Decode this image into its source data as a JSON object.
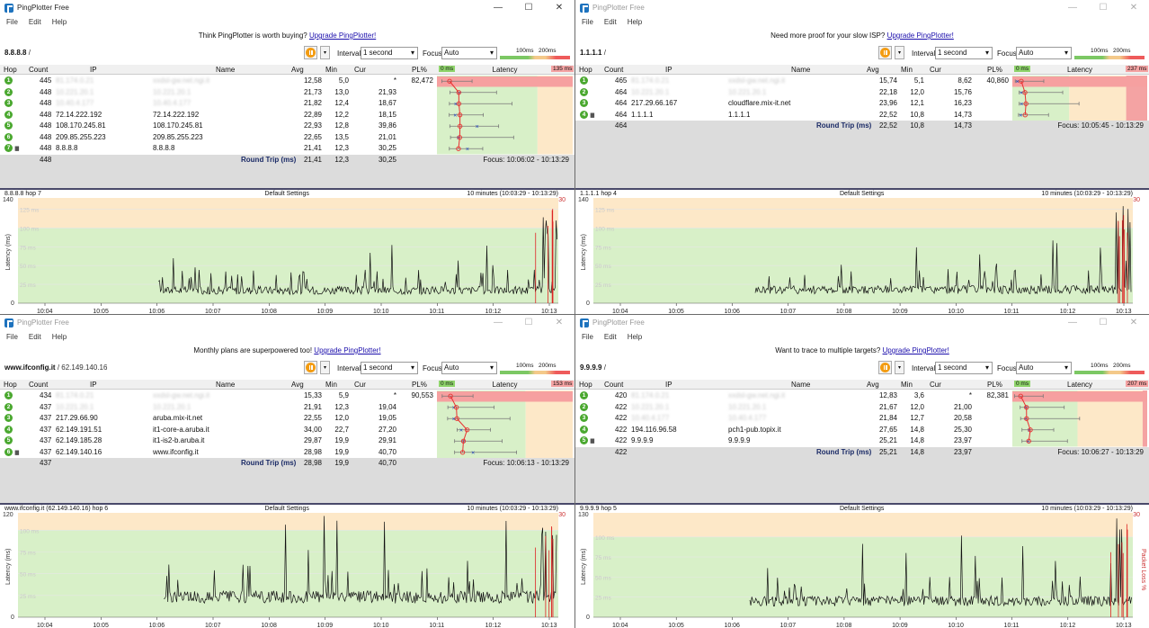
{
  "app_title": "PingPlotter Free",
  "menu": [
    "File",
    "Edit",
    "Help"
  ],
  "upgrade_link": "Upgrade PingPlotter!",
  "toolbar": {
    "interval_label": "Interval",
    "interval_value": "1 second",
    "focus_label": "Focus",
    "focus_value": "Auto",
    "scale_100": "100ms",
    "scale_200": "200ms"
  },
  "columns": {
    "hop": "Hop",
    "count": "Count",
    "ip": "IP",
    "name": "Name",
    "avg": "Avg",
    "min": "Min",
    "cur": "Cur",
    "pl": "PL%",
    "latency": "Latency"
  },
  "round_trip_label": "Round Trip (ms)",
  "graph": {
    "default_settings": "Default Settings",
    "latency_axis": "Latency (ms)",
    "packet_loss_axis": "Packet Loss %",
    "pl_max": "30",
    "range": "10 minutes (10:03:29 - 10:13:29)"
  },
  "windows": [
    {
      "active": true,
      "promo": "Think PingPlotter is worth buying?",
      "target": "8.8.8.8",
      "target_suffix": " /",
      "lat_zero": "0 ms",
      "lat_max": "135 ms",
      "hops": [
        {
          "hop": "1",
          "count": "445",
          "ip": "81.174.0.21",
          "name": "xxdsl-gw.net.ngi.it",
          "avg": "12,58",
          "min": "5,0",
          "cur": "*",
          "pl": "82,472",
          "masked": true
        },
        {
          "hop": "2",
          "count": "448",
          "ip": "10.221.20.1",
          "name": "10.221.20.1",
          "avg": "21,73",
          "min": "13,0",
          "cur": "21,93",
          "pl": "",
          "masked": true
        },
        {
          "hop": "3",
          "count": "448",
          "ip": "10.40.4.177",
          "name": "10.40.4.177",
          "avg": "21,82",
          "min": "12,4",
          "cur": "18,67",
          "pl": "",
          "masked": true
        },
        {
          "hop": "4",
          "count": "448",
          "ip": "72.14.222.192",
          "name": "72.14.222.192",
          "avg": "22,89",
          "min": "12,2",
          "cur": "18,15",
          "pl": "",
          "masked": false
        },
        {
          "hop": "5",
          "count": "448",
          "ip": "108.170.245.81",
          "name": "108.170.245.81",
          "avg": "22,93",
          "min": "12,8",
          "cur": "39,86",
          "pl": "",
          "masked": false
        },
        {
          "hop": "6",
          "count": "448",
          "ip": "209.85.255.223",
          "name": "209.85.255.223",
          "avg": "22,65",
          "min": "13,5",
          "cur": "21,01",
          "pl": "",
          "masked": false
        },
        {
          "hop": "7",
          "count": "448",
          "ip": "8.8.8.8",
          "name": "8.8.8.8",
          "avg": "21,41",
          "min": "12,3",
          "cur": "30,25",
          "pl": "",
          "masked": false
        }
      ],
      "rt": {
        "count": "448",
        "avg": "21,41",
        "min": "12,3",
        "cur": "30,25"
      },
      "focus_range": "Focus: 10:06:02 - 10:13:29",
      "graph_title": "8.8.8.8 hop 7",
      "y_max": "140",
      "y_ticks": [
        "125 ms",
        "100 ms",
        "75 ms",
        "50 ms",
        "25 ms"
      ],
      "x_ticks": [
        "10:04",
        "10:05",
        "10:06",
        "10:07",
        "10:08",
        "10:09",
        "10:10",
        "10:11",
        "10:12",
        "10:13"
      ]
    },
    {
      "active": false,
      "promo": "Need more proof for your slow ISP?",
      "target": "1.1.1.1",
      "target_suffix": " /",
      "lat_zero": "0 ms",
      "lat_max": "237 ms",
      "hops": [
        {
          "hop": "1",
          "count": "465",
          "ip": "81.174.0.21",
          "name": "xxdsl-gw.net.ngi.it",
          "avg": "15,74",
          "min": "5,1",
          "cur": "8,62",
          "pl": "40,860",
          "masked": true
        },
        {
          "hop": "2",
          "count": "464",
          "ip": "10.221.20.1",
          "name": "10.221.20.1",
          "avg": "22,18",
          "min": "12,0",
          "cur": "15,76",
          "pl": "",
          "masked": true
        },
        {
          "hop": "3",
          "count": "464",
          "ip": "217.29.66.167",
          "name": "cloudflare.mix-it.net",
          "avg": "23,96",
          "min": "12,1",
          "cur": "16,23",
          "pl": "",
          "masked": false
        },
        {
          "hop": "4",
          "count": "464",
          "ip": "1.1.1.1",
          "name": "1.1.1.1",
          "avg": "22,52",
          "min": "10,8",
          "cur": "14,73",
          "pl": "",
          "masked": false
        }
      ],
      "rt": {
        "count": "464",
        "avg": "22,52",
        "min": "10,8",
        "cur": "14,73"
      },
      "focus_range": "Focus: 10:05:45 - 10:13:29",
      "graph_title": "1.1.1.1 hop 4",
      "y_max": "140",
      "y_ticks": [
        "125 ms",
        "100 ms",
        "75 ms",
        "50 ms",
        "25 ms"
      ],
      "x_ticks": [
        "10:04",
        "10:05",
        "10:06",
        "10:07",
        "10:08",
        "10:09",
        "10:10",
        "10:11",
        "10:12",
        "10:13"
      ]
    },
    {
      "active": false,
      "promo": "Monthly plans are superpowered too!",
      "target": "www.ifconfig.it",
      "target_suffix": " / 62.149.140.16",
      "lat_zero": "0 ms",
      "lat_max": "153 ms",
      "hops": [
        {
          "hop": "1",
          "count": "434",
          "ip": "81.174.0.21",
          "name": "xxdsl-gw.net.ngi.it",
          "avg": "15,33",
          "min": "5,9",
          "cur": "*",
          "pl": "90,553",
          "masked": true
        },
        {
          "hop": "2",
          "count": "437",
          "ip": "10.221.20.1",
          "name": "10.221.20.1",
          "avg": "21,91",
          "min": "12,3",
          "cur": "19,04",
          "pl": "",
          "masked": true
        },
        {
          "hop": "3",
          "count": "437",
          "ip": "217.29.66.90",
          "name": "aruba.mix-it.net",
          "avg": "22,55",
          "min": "12,0",
          "cur": "19,05",
          "pl": "",
          "masked": false
        },
        {
          "hop": "4",
          "count": "437",
          "ip": "62.149.191.51",
          "name": "it1-core-a.aruba.it",
          "avg": "34,00",
          "min": "22,7",
          "cur": "27,20",
          "pl": "",
          "masked": false
        },
        {
          "hop": "5",
          "count": "437",
          "ip": "62.149.185.28",
          "name": "it1-is2-b.aruba.it",
          "avg": "29,87",
          "min": "19,9",
          "cur": "29,91",
          "pl": "",
          "masked": false
        },
        {
          "hop": "6",
          "count": "437",
          "ip": "62.149.140.16",
          "name": "www.ifconfig.it",
          "avg": "28,98",
          "min": "19,9",
          "cur": "40,70",
          "pl": "",
          "masked": false
        }
      ],
      "rt": {
        "count": "437",
        "avg": "28,98",
        "min": "19,9",
        "cur": "40,70"
      },
      "focus_range": "Focus: 10:06:13 - 10:13:29",
      "graph_title": "www.ifconfig.it (62.149.140.16) hop 6",
      "y_max": "120",
      "y_ticks": [
        "100 ms",
        "75 ms",
        "50 ms",
        "25 ms"
      ],
      "x_ticks": [
        "10:04",
        "10:05",
        "10:06",
        "10:07",
        "10:08",
        "10:09",
        "10:10",
        "10:11",
        "10:12",
        "10:13"
      ]
    },
    {
      "active": false,
      "promo": "Want to trace to multiple targets?",
      "target": "9.9.9.9",
      "target_suffix": " /",
      "lat_zero": "0 ms",
      "lat_max": "207 ms",
      "hops": [
        {
          "hop": "1",
          "count": "420",
          "ip": "81.174.0.21",
          "name": "xxdsl-gw.net.ngi.it",
          "avg": "12,83",
          "min": "3,6",
          "cur": "*",
          "pl": "82,381",
          "masked": true
        },
        {
          "hop": "2",
          "count": "422",
          "ip": "10.221.20.1",
          "name": "10.221.20.1",
          "avg": "21,67",
          "min": "12,0",
          "cur": "21,00",
          "pl": "",
          "masked": true
        },
        {
          "hop": "3",
          "count": "422",
          "ip": "10.40.4.177",
          "name": "10.40.4.177",
          "avg": "21,84",
          "min": "12,7",
          "cur": "20,58",
          "pl": "",
          "masked": true
        },
        {
          "hop": "4",
          "count": "422",
          "ip": "194.116.96.58",
          "name": "pch1-pub.topix.it",
          "avg": "27,65",
          "min": "14,8",
          "cur": "25,30",
          "pl": "",
          "masked": false
        },
        {
          "hop": "5",
          "count": "422",
          "ip": "9.9.9.9",
          "name": "9.9.9.9",
          "avg": "25,21",
          "min": "14,8",
          "cur": "23,97",
          "pl": "",
          "masked": false
        }
      ],
      "rt": {
        "count": "422",
        "avg": "25,21",
        "min": "14,8",
        "cur": "23,97"
      },
      "focus_range": "Focus: 10:06:27 - 10:13:29",
      "graph_title": "9.9.9.9 hop 5",
      "y_max": "130",
      "y_ticks": [
        "100 ms",
        "75 ms",
        "50 ms",
        "25 ms"
      ],
      "x_ticks": [
        "10:04",
        "10:05",
        "10:06",
        "10:07",
        "10:08",
        "10:09",
        "10:10",
        "10:11",
        "10:12",
        "10:13"
      ]
    }
  ],
  "colors": {
    "good": "#d8f0c8",
    "warn": "#fde8c8",
    "bad": "#f4a3a3",
    "trace": "#e83030",
    "accent": "#1e73be"
  }
}
